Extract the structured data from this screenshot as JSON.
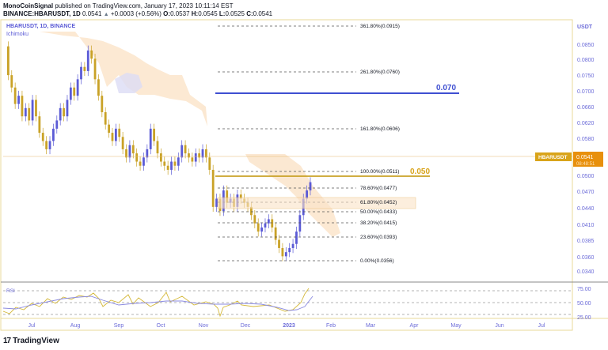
{
  "header": {
    "publisher": "MonoCoinSignal",
    "published_text": "published on TradingView.com, January 17, 2023 10:11:14 EST",
    "symbol_full": "BINANCE:HBARUSDT, 1D",
    "last": "0.0541",
    "change_arrow": "▲",
    "change": "+0.0003 (+0.56%)",
    "o_label": "O:",
    "o": "0.0537",
    "h_label": "H:",
    "h": "0.0545",
    "l_label": "L:",
    "l": "0.0525",
    "c_label": "C:",
    "c": "0.0541"
  },
  "legend": {
    "title": "HBARUSDT, 1D, BINANCE",
    "indicator": "Ichimoku",
    "rsi_label": "RSI"
  },
  "price_axis": {
    "currency": "USDT",
    "ticks": [
      "0.0850",
      "0.0800",
      "0.0750",
      "0.0700",
      "0.0660",
      "0.0620",
      "0.0580",
      "0.0500",
      "0.0470",
      "0.0440",
      "0.0410",
      "0.0385",
      "0.0360",
      "0.0340"
    ],
    "current_symbol_label": "HBARUSDT",
    "current_price": "0.0541",
    "countdown": "08:48:51"
  },
  "rsi_axis": {
    "ticks": [
      "75.00",
      "50.00",
      "25.00"
    ]
  },
  "time_axis": {
    "ticks": [
      "Jul",
      "Aug",
      "Sep",
      "Oct",
      "Nov",
      "Dec",
      "2023",
      "Feb",
      "Mar",
      "Apr",
      "May",
      "Jun",
      "Jul"
    ]
  },
  "annotations": {
    "target_high": "0.070",
    "target_low": "0.050"
  },
  "footer": {
    "brand": "TradingView",
    "logo": "17"
  },
  "colors": {
    "up_candle": "#5b5bd6",
    "down_candle": "#c9a227",
    "fib_text": "#131722",
    "target_high_line": "#3f4fd1",
    "target_low_line": "#c9a227",
    "axis_text": "#6b6bd8",
    "axis_border": "#e8d89a",
    "price_badge": "#e8900c",
    "cloud": "#fbe3c8",
    "rsi_line": "#d4b838",
    "rsi_ma": "#8b8be0"
  },
  "chart_data": {
    "type": "candlestick",
    "title": "BINANCE:HBARUSDT, 1D",
    "ylabel": "USDT",
    "ylim": [
      0.033,
      0.0925
    ],
    "x_ticks": [
      "Jul",
      "Aug",
      "Sep",
      "Oct",
      "Nov",
      "Dec",
      "2023",
      "Feb",
      "Mar",
      "Apr",
      "May",
      "Jun",
      "Jul"
    ],
    "y_ticks": [
      0.085,
      0.08,
      0.075,
      0.07,
      0.066,
      0.062,
      0.058,
      0.05,
      0.047,
      0.044,
      0.041,
      0.0385,
      0.036,
      0.034
    ],
    "current_price": 0.0541,
    "ohlc_last": {
      "open": 0.0537,
      "high": 0.0545,
      "low": 0.0525,
      "close": 0.0541,
      "change": 0.0003,
      "change_pct": 0.56
    },
    "fibonacci_levels": [
      {
        "level": "361.80%",
        "price": 0.0915
      },
      {
        "level": "261.80%",
        "price": 0.076
      },
      {
        "level": "161.80%",
        "price": 0.0606
      },
      {
        "level": "100.00%",
        "price": 0.0511
      },
      {
        "level": "78.60%",
        "price": 0.0477
      },
      {
        "level": "61.80%",
        "price": 0.0452
      },
      {
        "level": "50.00%",
        "price": 0.0433
      },
      {
        "level": "38.20%",
        "price": 0.0415
      },
      {
        "level": "23.60%",
        "price": 0.0393
      },
      {
        "level": "0.00%",
        "price": 0.0356
      }
    ],
    "horizontal_lines": [
      {
        "label": "0.070",
        "price": 0.07,
        "color": "#3f4fd1"
      },
      {
        "label": "0.050",
        "price": 0.0502,
        "color": "#c9a227"
      }
    ],
    "approx_close_path": [
      {
        "month": "Jul",
        "price": 0.07
      },
      {
        "month": "Aug",
        "price": 0.08
      },
      {
        "month": "Aug-mid",
        "price": 0.087
      },
      {
        "month": "Sep",
        "price": 0.064
      },
      {
        "month": "Oct",
        "price": 0.059
      },
      {
        "month": "Nov",
        "price": 0.062
      },
      {
        "month": "Nov-early",
        "price": 0.048
      },
      {
        "month": "Dec",
        "price": 0.046
      },
      {
        "month": "Dec-mid",
        "price": 0.044
      },
      {
        "month": "Dec-end",
        "price": 0.036
      },
      {
        "month": "2023-Jan",
        "price": 0.041
      },
      {
        "month": "Jan-17",
        "price": 0.0541
      }
    ],
    "rsi": {
      "ylim": [
        20,
        80
      ],
      "levels": [
        75,
        50,
        25
      ],
      "latest": 76
    }
  }
}
